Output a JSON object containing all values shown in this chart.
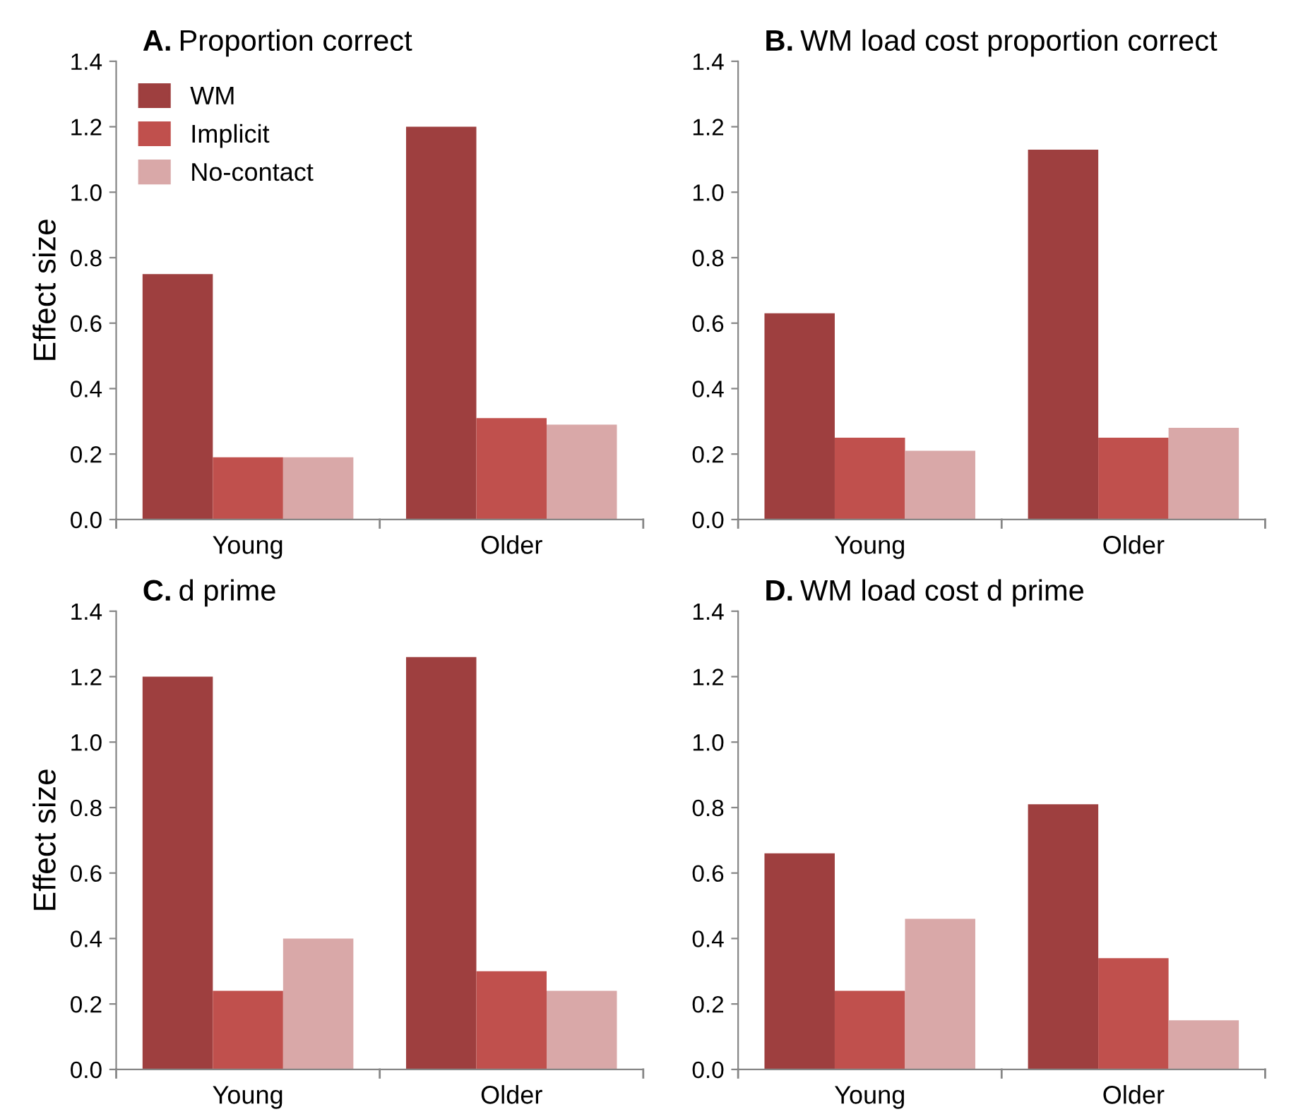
{
  "chart_data": [
    {
      "type": "bar",
      "title": "A. Proportion correct",
      "ylabel": "Effect size",
      "categories": [
        "Young",
        "Older"
      ],
      "legend": "top left",
      "grid": false,
      "ylim": [
        0,
        1.4
      ],
      "yticks": [
        {
          "value": 0,
          "label": "0.0"
        },
        {
          "value": 0.2,
          "label": "0.2"
        },
        {
          "value": 0.4,
          "label": "0.4"
        },
        {
          "value": 0.6,
          "label": "0.6"
        },
        {
          "value": 0.8,
          "label": "0.8"
        },
        {
          "value": 1.0,
          "label": "1.0"
        },
        {
          "value": 1.2,
          "label": "1.2"
        },
        {
          "value": 1.4,
          "label": "1.4"
        }
      ],
      "series": [
        {
          "name": "WM",
          "color": "#9e3f3f",
          "values": [
            0.75,
            1.2
          ]
        },
        {
          "name": "Implicit",
          "color": "#c0504d",
          "values": [
            0.19,
            0.31
          ]
        },
        {
          "name": "No-contact",
          "color": "#d9a8a8",
          "values": [
            0.19,
            0.29
          ]
        }
      ]
    },
    {
      "type": "bar",
      "title": "B. WM load cost proportion correct",
      "categories": [
        "Young",
        "Older"
      ],
      "grid": false,
      "ylim": [
        0,
        1.4
      ],
      "yticks": [
        {
          "value": 0,
          "label": "0.0"
        },
        {
          "value": 0.2,
          "label": "0.2"
        },
        {
          "value": 0.4,
          "label": "0.4"
        },
        {
          "value": 0.6,
          "label": "0.6"
        },
        {
          "value": 0.8,
          "label": "0.8"
        },
        {
          "value": 1.0,
          "label": "1.0"
        },
        {
          "value": 1.2,
          "label": "1.2"
        },
        {
          "value": 1.4,
          "label": "1.4"
        }
      ],
      "series": [
        {
          "color": "#9e3f3f",
          "values": [
            0.63,
            1.13
          ]
        },
        {
          "color": "#c0504d",
          "values": [
            0.25,
            0.25
          ]
        },
        {
          "color": "#d9a8a8",
          "values": [
            0.21,
            0.28
          ]
        }
      ]
    },
    {
      "type": "bar",
      "title": "C. d prime",
      "ylabel": "Effect size",
      "categories": [
        "Young",
        "Older"
      ],
      "grid": false,
      "ylim": [
        0,
        1.4
      ],
      "yticks": [
        {
          "value": 0,
          "label": "0.0"
        },
        {
          "value": 0.2,
          "label": "0.2"
        },
        {
          "value": 0.4,
          "label": "0.4"
        },
        {
          "value": 0.6,
          "label": "0.6"
        },
        {
          "value": 0.8,
          "label": "0.8"
        },
        {
          "value": 1.0,
          "label": "1.0"
        },
        {
          "value": 1.2,
          "label": "1.2"
        },
        {
          "value": 1.4,
          "label": "1.4"
        }
      ],
      "series": [
        {
          "color": "#9e3f3f",
          "values": [
            1.2,
            1.26
          ]
        },
        {
          "color": "#c0504d",
          "values": [
            0.24,
            0.3
          ]
        },
        {
          "color": "#d9a8a8",
          "values": [
            0.4,
            0.24
          ]
        }
      ]
    },
    {
      "type": "bar",
      "title": "D. WM load cost d prime",
      "categories": [
        "Young",
        "Older"
      ],
      "grid": false,
      "ylim": [
        0,
        1.4
      ],
      "yticks": [
        {
          "value": 0,
          "label": "0.0"
        },
        {
          "value": 0.2,
          "label": "0.2"
        },
        {
          "value": 0.4,
          "label": "0.4"
        },
        {
          "value": 0.6,
          "label": "0.6"
        },
        {
          "value": 0.8,
          "label": "0.8"
        },
        {
          "value": 1.0,
          "label": "1.0"
        },
        {
          "value": 1.2,
          "label": "1.2"
        },
        {
          "value": 1.4,
          "label": "1.4"
        }
      ],
      "series": [
        {
          "color": "#9e3f3f",
          "values": [
            0.66,
            0.81
          ]
        },
        {
          "color": "#c0504d",
          "values": [
            0.24,
            0.34
          ]
        },
        {
          "color": "#d9a8a8",
          "values": [
            0.46,
            0.15
          ]
        }
      ]
    }
  ]
}
